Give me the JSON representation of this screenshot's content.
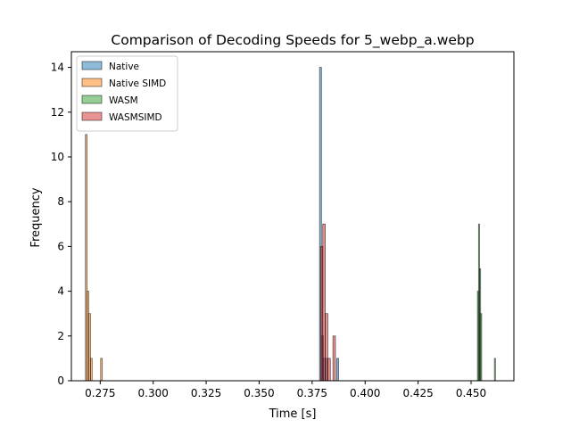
{
  "chart_data": {
    "type": "histogram",
    "title": "Comparison of Decoding Speeds for 5_webp_a.webp",
    "xlabel": "Time [s]",
    "ylabel": "Frequency",
    "xlim": [
      0.2614,
      0.4702
    ],
    "ylim": [
      0,
      14.7
    ],
    "xticks": [
      0.275,
      0.3,
      0.325,
      0.35,
      0.375,
      0.4,
      0.425,
      0.45
    ],
    "xtick_labels": [
      "0.275",
      "0.300",
      "0.325",
      "0.350",
      "0.375",
      "0.400",
      "0.425",
      "0.450"
    ],
    "yticks": [
      0,
      2,
      4,
      6,
      8,
      10,
      12,
      14
    ],
    "ytick_labels": [
      "0",
      "2",
      "4",
      "6",
      "8",
      "10",
      "12",
      "14"
    ],
    "grid": false,
    "legend_position": "top-left",
    "bar_alpha": 0.5,
    "series": [
      {
        "name": "Native",
        "color": "#1f77b4",
        "bins": [
          {
            "x0": 0.3785,
            "x1": 0.3794,
            "count": 14
          },
          {
            "x0": 0.3794,
            "x1": 0.3803,
            "count": 2
          },
          {
            "x0": 0.3803,
            "x1": 0.3812,
            "count": 1
          },
          {
            "x0": 0.3812,
            "x1": 0.3821,
            "count": 1
          },
          {
            "x0": 0.3866,
            "x1": 0.3875,
            "count": 1
          }
        ]
      },
      {
        "name": "Native SIMD",
        "color": "#ff7f0e",
        "bins": [
          {
            "x0": 0.268,
            "x1": 0.2688,
            "count": 11
          },
          {
            "x0": 0.2688,
            "x1": 0.2696,
            "count": 4
          },
          {
            "x0": 0.2696,
            "x1": 0.2704,
            "count": 3
          },
          {
            "x0": 0.2704,
            "x1": 0.2712,
            "count": 1
          },
          {
            "x0": 0.2752,
            "x1": 0.276,
            "count": 1
          }
        ]
      },
      {
        "name": "WASM",
        "color": "#2ca02c",
        "bins": [
          {
            "x0": 0.453,
            "x1": 0.4535,
            "count": 4
          },
          {
            "x0": 0.4535,
            "x1": 0.454,
            "count": 7
          },
          {
            "x0": 0.454,
            "x1": 0.4545,
            "count": 5
          },
          {
            "x0": 0.4545,
            "x1": 0.455,
            "count": 3
          },
          {
            "x0": 0.461,
            "x1": 0.4615,
            "count": 1
          }
        ]
      },
      {
        "name": "WASMSIMD",
        "color": "#d62728",
        "bins": [
          {
            "x0": 0.379,
            "x1": 0.38,
            "count": 6
          },
          {
            "x0": 0.38,
            "x1": 0.3812,
            "count": 7
          },
          {
            "x0": 0.3812,
            "x1": 0.3824,
            "count": 3
          },
          {
            "x0": 0.3824,
            "x1": 0.3836,
            "count": 1
          },
          {
            "x0": 0.3848,
            "x1": 0.386,
            "count": 2
          }
        ]
      }
    ]
  }
}
